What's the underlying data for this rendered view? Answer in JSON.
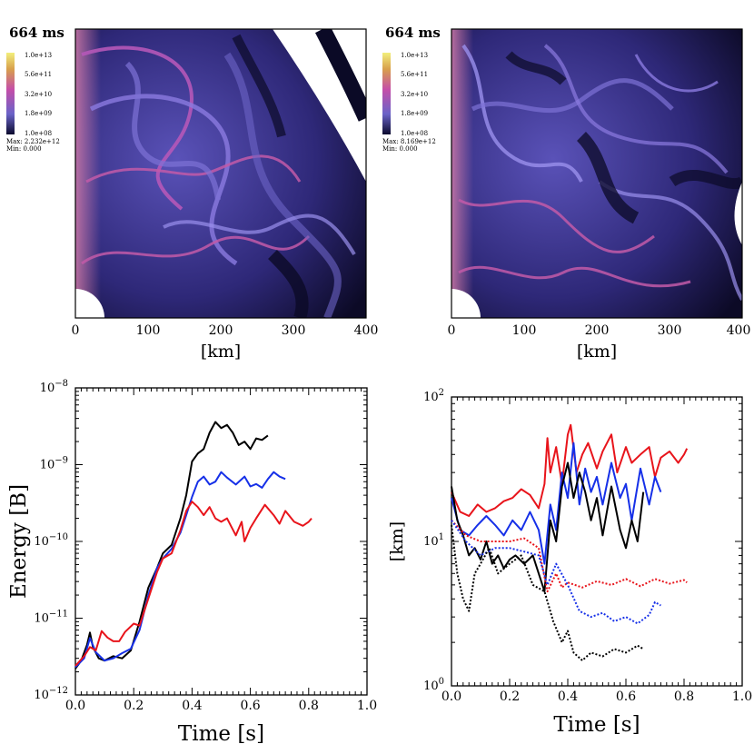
{
  "panels": [
    {
      "id": "top-left",
      "time_label": "664 ms",
      "colorbar_labels": [
        "1.0e+13",
        "5.6e+11",
        "3.2e+10",
        "1.8e+09",
        "1.0e+08"
      ],
      "max_label": "Max:  2.232e+12",
      "min_label": "Min:  0.000",
      "x_ticks": [
        "0",
        "100",
        "200",
        "300",
        "400"
      ],
      "xlabel": "[km]"
    },
    {
      "id": "top-right",
      "time_label": "664 ms",
      "colorbar_labels": [
        "1.0e+13",
        "5.6e+11",
        "3.2e+10",
        "1.8e+09",
        "1.0e+08"
      ],
      "max_label": "Max:  8.169e+12",
      "min_label": "Min:  0.000",
      "x_ticks": [
        "0",
        "100",
        "200",
        "300",
        "400"
      ],
      "xlabel": "[km]"
    }
  ],
  "colors": {
    "black": "#000000",
    "red": "#e8141b",
    "blue": "#1630e8",
    "field_dark": "#08061c",
    "field_mid": "#4a3f9e",
    "field_light": "#8c86e6",
    "field_pink": "#b44fb0"
  },
  "chart_data": [
    {
      "type": "line",
      "panel": "bottom-left",
      "xlabel": "Time [s]",
      "ylabel": "Energy [B]",
      "xlim": [
        0.0,
        1.0
      ],
      "ylim": [
        1e-12,
        1e-08
      ],
      "yscale": "log",
      "x_ticks": [
        "0.0",
        "0.2",
        "0.4",
        "0.6",
        "0.8",
        "1.0"
      ],
      "y_ticks": [
        {
          "base": "10",
          "exp": "−8",
          "value": 1e-08
        },
        {
          "base": "10",
          "exp": "−9",
          "value": 1e-09
        },
        {
          "base": "10",
          "exp": "−10",
          "value": 1e-10
        },
        {
          "base": "10",
          "exp": "−11",
          "value": 1e-11
        },
        {
          "base": "10",
          "exp": "−12",
          "value": 1e-12
        }
      ],
      "series": [
        {
          "name": "black",
          "color": "#000000",
          "style": "solid",
          "x": [
            0.0,
            0.02,
            0.04,
            0.05,
            0.06,
            0.08,
            0.1,
            0.13,
            0.16,
            0.19,
            0.22,
            0.25,
            0.28,
            0.3,
            0.33,
            0.36,
            0.38,
            0.4,
            0.42,
            0.44,
            0.46,
            0.48,
            0.5,
            0.52,
            0.54,
            0.56,
            0.58,
            0.6,
            0.62,
            0.64,
            0.66
          ],
          "y": [
            2.2e-12,
            2.8e-12,
            4.5e-12,
            6.5e-12,
            4.2e-12,
            3e-12,
            2.8e-12,
            3.2e-12,
            3e-12,
            3.8e-12,
            9e-12,
            2.5e-11,
            4.5e-11,
            7e-11,
            9e-11,
            2e-10,
            4e-10,
            1.1e-09,
            1.4e-09,
            1.6e-09,
            2.6e-09,
            3.6e-09,
            3e-09,
            3.3e-09,
            2.6e-09,
            1.8e-09,
            2e-09,
            1.6e-09,
            2.2e-09,
            2.1e-09,
            2.4e-09
          ]
        },
        {
          "name": "blue",
          "color": "#1630e8",
          "style": "solid",
          "x": [
            0.0,
            0.03,
            0.05,
            0.07,
            0.1,
            0.13,
            0.16,
            0.19,
            0.22,
            0.25,
            0.28,
            0.3,
            0.33,
            0.36,
            0.38,
            0.4,
            0.42,
            0.44,
            0.46,
            0.48,
            0.5,
            0.52,
            0.55,
            0.58,
            0.6,
            0.62,
            0.64,
            0.66,
            0.68,
            0.7,
            0.72
          ],
          "y": [
            2.3e-12,
            3e-12,
            5.5e-12,
            3.6e-12,
            2.8e-12,
            3e-12,
            3.5e-12,
            4e-12,
            7e-12,
            2e-11,
            4.5e-11,
            6e-11,
            8e-11,
            1.3e-10,
            2.2e-10,
            3.8e-10,
            6e-10,
            7e-10,
            5.5e-10,
            6e-10,
            8e-10,
            6.8e-10,
            5.5e-10,
            7e-10,
            5.2e-10,
            5.6e-10,
            5e-10,
            6.5e-10,
            8e-10,
            7e-10,
            6.5e-10
          ]
        },
        {
          "name": "red",
          "color": "#e8141b",
          "style": "solid",
          "x": [
            0.0,
            0.03,
            0.05,
            0.07,
            0.09,
            0.11,
            0.13,
            0.15,
            0.17,
            0.2,
            0.22,
            0.25,
            0.28,
            0.3,
            0.33,
            0.36,
            0.38,
            0.4,
            0.42,
            0.44,
            0.46,
            0.48,
            0.5,
            0.52,
            0.55,
            0.57,
            0.58,
            0.6,
            0.62,
            0.65,
            0.68,
            0.7,
            0.72,
            0.75,
            0.78,
            0.8,
            0.81
          ],
          "y": [
            2.4e-12,
            3.2e-12,
            4.2e-12,
            3.8e-12,
            6.8e-12,
            5.6e-12,
            5e-12,
            5e-12,
            6.6e-12,
            8.5e-12,
            8e-12,
            1.8e-11,
            4e-11,
            6e-11,
            7e-11,
            1.4e-10,
            2.5e-10,
            3.3e-10,
            2.8e-10,
            2.2e-10,
            2.8e-10,
            2e-10,
            1.8e-10,
            2e-10,
            1.2e-10,
            1.8e-10,
            1e-10,
            1.5e-10,
            2e-10,
            3e-10,
            2.2e-10,
            1.7e-10,
            2.5e-10,
            1.8e-10,
            1.6e-10,
            1.8e-10,
            2e-10
          ]
        }
      ]
    },
    {
      "type": "line",
      "panel": "bottom-right",
      "xlabel": "Time [s]",
      "ylabel": "[km]",
      "xlim": [
        0.0,
        1.0
      ],
      "ylim": [
        1,
        100
      ],
      "yscale": "log",
      "x_ticks": [
        "0.0",
        "0.2",
        "0.4",
        "0.6",
        "0.8",
        "1.0"
      ],
      "y_ticks": [
        {
          "base": "10",
          "exp": "2",
          "value": 100
        },
        {
          "base": "10",
          "exp": "1",
          "value": 10
        },
        {
          "base": "10",
          "exp": "0",
          "value": 1
        }
      ],
      "series": [
        {
          "name": "red-solid",
          "color": "#e8141b",
          "style": "solid",
          "x": [
            0.0,
            0.03,
            0.06,
            0.09,
            0.12,
            0.15,
            0.18,
            0.21,
            0.24,
            0.27,
            0.3,
            0.32,
            0.33,
            0.34,
            0.36,
            0.38,
            0.4,
            0.41,
            0.43,
            0.45,
            0.47,
            0.5,
            0.52,
            0.55,
            0.57,
            0.6,
            0.62,
            0.65,
            0.68,
            0.7,
            0.72,
            0.75,
            0.78,
            0.8,
            0.81
          ],
          "y": [
            22,
            16,
            15,
            18,
            16,
            17,
            19,
            20,
            23,
            21,
            17,
            25,
            52,
            30,
            45,
            25,
            55,
            64,
            30,
            40,
            48,
            32,
            42,
            55,
            30,
            45,
            35,
            40,
            45,
            28,
            38,
            42,
            35,
            40,
            44
          ]
        },
        {
          "name": "blue-solid",
          "color": "#1630e8",
          "style": "solid",
          "x": [
            0.0,
            0.03,
            0.06,
            0.09,
            0.12,
            0.15,
            0.18,
            0.21,
            0.24,
            0.27,
            0.3,
            0.32,
            0.34,
            0.36,
            0.38,
            0.4,
            0.42,
            0.44,
            0.46,
            0.48,
            0.5,
            0.52,
            0.55,
            0.58,
            0.6,
            0.62,
            0.65,
            0.68,
            0.7,
            0.72
          ],
          "y": [
            20,
            12,
            11,
            13,
            15,
            13,
            11,
            14,
            12,
            16,
            12,
            7,
            18,
            12,
            30,
            20,
            48,
            18,
            32,
            22,
            28,
            18,
            35,
            20,
            25,
            14,
            32,
            18,
            28,
            22
          ]
        },
        {
          "name": "black-solid",
          "color": "#000000",
          "style": "solid",
          "x": [
            0.0,
            0.02,
            0.04,
            0.06,
            0.08,
            0.1,
            0.12,
            0.14,
            0.16,
            0.18,
            0.2,
            0.22,
            0.25,
            0.28,
            0.3,
            0.32,
            0.34,
            0.36,
            0.38,
            0.4,
            0.42,
            0.44,
            0.46,
            0.48,
            0.5,
            0.52,
            0.55,
            0.58,
            0.6,
            0.62,
            0.64,
            0.66
          ],
          "y": [
            24,
            14,
            11,
            8,
            9,
            7.5,
            10,
            7,
            8,
            6.5,
            7.5,
            8,
            7,
            8,
            6,
            4.5,
            14,
            10,
            24,
            35,
            20,
            30,
            22,
            14,
            20,
            11,
            24,
            12,
            9,
            14,
            10,
            22
          ]
        },
        {
          "name": "red-dotted",
          "color": "#e8141b",
          "style": "dotted",
          "x": [
            0.0,
            0.05,
            0.1,
            0.15,
            0.2,
            0.25,
            0.3,
            0.33,
            0.36,
            0.38,
            0.4,
            0.45,
            0.5,
            0.55,
            0.6,
            0.65,
            0.7,
            0.75,
            0.8,
            0.81
          ],
          "y": [
            14,
            11,
            10,
            10,
            10,
            10.5,
            9,
            4.5,
            6,
            4.8,
            5.2,
            4.8,
            5.3,
            5.0,
            5.5,
            4.9,
            5.5,
            5.1,
            5.4,
            5.2
          ]
        },
        {
          "name": "blue-dotted",
          "color": "#1630e8",
          "style": "dotted",
          "x": [
            0.0,
            0.05,
            0.1,
            0.15,
            0.2,
            0.25,
            0.3,
            0.33,
            0.36,
            0.4,
            0.44,
            0.48,
            0.52,
            0.56,
            0.6,
            0.64,
            0.68,
            0.7,
            0.72
          ],
          "y": [
            14,
            10,
            8,
            9,
            9,
            8.5,
            8,
            5,
            7,
            5,
            3.3,
            3.0,
            3.2,
            2.8,
            3.0,
            2.7,
            3.1,
            3.8,
            3.6
          ]
        },
        {
          "name": "black-dotted",
          "color": "#000000",
          "style": "dotted",
          "x": [
            0.0,
            0.02,
            0.04,
            0.06,
            0.08,
            0.1,
            0.13,
            0.16,
            0.2,
            0.24,
            0.28,
            0.32,
            0.35,
            0.38,
            0.4,
            0.42,
            0.45,
            0.48,
            0.52,
            0.56,
            0.6,
            0.64,
            0.66
          ],
          "y": [
            13,
            6,
            4,
            3.3,
            6,
            7,
            9,
            6,
            7,
            8,
            5,
            4.5,
            2.8,
            2.0,
            2.4,
            1.7,
            1.5,
            1.7,
            1.6,
            1.8,
            1.7,
            1.9,
            1.8
          ]
        }
      ]
    }
  ]
}
